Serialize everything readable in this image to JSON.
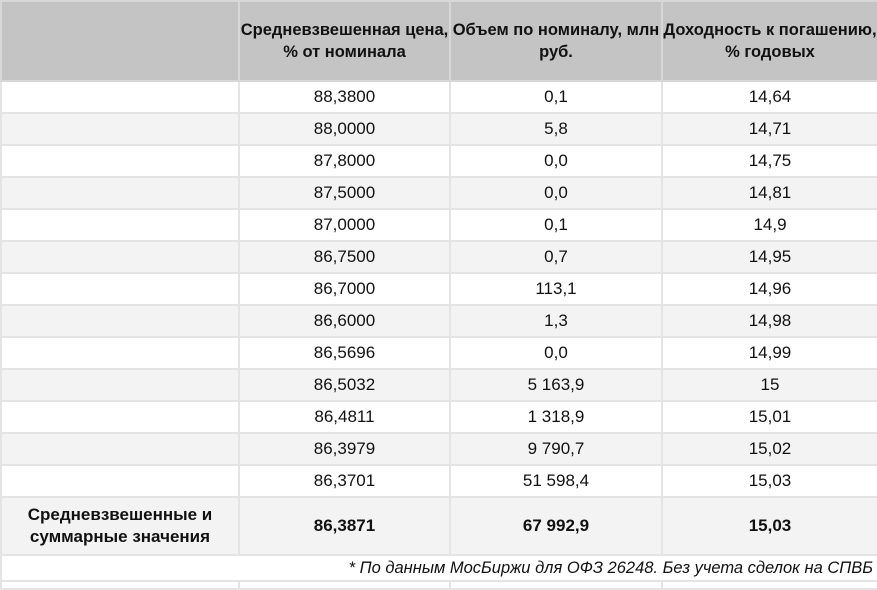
{
  "headers": [
    "",
    "Средневзвешенная цена, % от номинала",
    "Объем по номиналу, млн руб.",
    "Доходность к погашению, % годовых"
  ],
  "rows": [
    [
      "88,3800",
      "0,1",
      "14,64"
    ],
    [
      "88,0000",
      "5,8",
      "14,71"
    ],
    [
      "87,8000",
      "0,0",
      "14,75"
    ],
    [
      "87,5000",
      "0,0",
      "14,81"
    ],
    [
      "87,0000",
      "0,1",
      "14,9"
    ],
    [
      "86,7500",
      "0,7",
      "14,95"
    ],
    [
      "86,7000",
      "113,1",
      "14,96"
    ],
    [
      "86,6000",
      "1,3",
      "14,98"
    ],
    [
      "86,5696",
      "0,0",
      "14,99"
    ],
    [
      "86,5032",
      "5 163,9",
      "15"
    ],
    [
      "86,4811",
      "1 318,9",
      "15,01"
    ],
    [
      "86,3979",
      "9 790,7",
      "15,02"
    ],
    [
      "86,3701",
      "51 598,4",
      "15,03"
    ]
  ],
  "total": {
    "label": "Средневзвешенные и суммарные значения",
    "price": "86,3871",
    "volume": "67 992,9",
    "yield": "15,03"
  },
  "footnote": "* По данным МосБиржи для ОФЗ 26248. Без учета сделок на СПВБ"
}
